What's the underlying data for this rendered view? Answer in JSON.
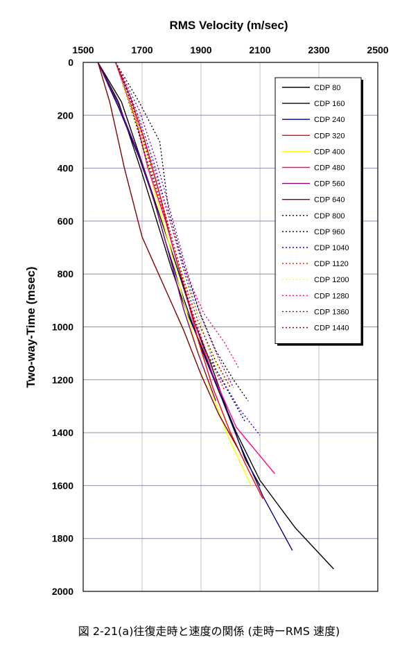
{
  "chart_data": {
    "type": "line",
    "title": "RMS Velocity (m/sec)",
    "xlabel": "RMS Velocity (m/sec)",
    "ylabel": "Two-way-Time (msec)",
    "xlim": [
      1500,
      2500
    ],
    "ylim": [
      0,
      2000
    ],
    "y_inverted": true,
    "x_axis_position": "top",
    "xticks": [
      1500,
      1700,
      1900,
      2100,
      2300,
      2500
    ],
    "yticks": [
      0,
      200,
      400,
      600,
      800,
      1000,
      1200,
      1400,
      1600,
      1800,
      2000
    ],
    "grid": true,
    "legend_position": "top-right",
    "series": [
      {
        "name": "CDP 80",
        "color": "#000000",
        "style": "solid",
        "points": [
          [
            1550,
            0
          ],
          [
            1620,
            150
          ],
          [
            1700,
            420
          ],
          [
            1750,
            600
          ],
          [
            1800,
            780
          ],
          [
            1850,
            940
          ],
          [
            1900,
            1070
          ],
          [
            1960,
            1240
          ],
          [
            2020,
            1400
          ],
          [
            2100,
            1580
          ],
          [
            2220,
            1760
          ],
          [
            2350,
            1915
          ]
        ]
      },
      {
        "name": "CDP 160",
        "color": "#000000",
        "style": "solid",
        "points": [
          [
            1550,
            0
          ],
          [
            1630,
            150
          ],
          [
            1700,
            380
          ],
          [
            1760,
            580
          ],
          [
            1820,
            780
          ],
          [
            1880,
            990
          ],
          [
            1930,
            1130
          ],
          [
            1990,
            1320
          ],
          [
            2050,
            1500
          ],
          [
            2100,
            1600
          ]
        ]
      },
      {
        "name": "CDP 240",
        "color": "#000080",
        "style": "solid",
        "points": [
          [
            1550,
            0
          ],
          [
            1620,
            170
          ],
          [
            1690,
            360
          ],
          [
            1740,
            520
          ],
          [
            1780,
            680
          ],
          [
            1840,
            890
          ],
          [
            1900,
            1080
          ],
          [
            1970,
            1270
          ],
          [
            2030,
            1440
          ],
          [
            2110,
            1640
          ],
          [
            2210,
            1845
          ]
        ]
      },
      {
        "name": "CDP 320",
        "color": "#ff0000",
        "style": "solid",
        "points": [
          [
            1610,
            0
          ],
          [
            1660,
            130
          ],
          [
            1710,
            300
          ],
          [
            1760,
            500
          ],
          [
            1800,
            680
          ],
          [
            1850,
            880
          ],
          [
            1890,
            1050
          ],
          [
            1940,
            1230
          ],
          [
            2000,
            1400
          ],
          [
            2060,
            1540
          ],
          [
            2110,
            1650
          ]
        ]
      },
      {
        "name": "CDP 400",
        "color": "#ffff00",
        "style": "solid",
        "points": [
          [
            1610,
            0
          ],
          [
            1650,
            130
          ],
          [
            1700,
            300
          ],
          [
            1740,
            480
          ],
          [
            1790,
            680
          ],
          [
            1840,
            900
          ],
          [
            1880,
            1060
          ],
          [
            1930,
            1230
          ],
          [
            1990,
            1410
          ],
          [
            2070,
            1600
          ]
        ]
      },
      {
        "name": "CDP 480",
        "color": "#ff0080",
        "style": "solid",
        "points": [
          [
            1610,
            0
          ],
          [
            1680,
            220
          ],
          [
            1720,
            400
          ],
          [
            1780,
            600
          ],
          [
            1830,
            800
          ],
          [
            1880,
            990
          ],
          [
            1940,
            1180
          ],
          [
            2020,
            1380
          ],
          [
            2150,
            1555
          ]
        ]
      },
      {
        "name": "CDP 560",
        "color": "#800080",
        "style": "solid",
        "points": [
          [
            1550,
            0
          ],
          [
            1620,
            160
          ],
          [
            1700,
            380
          ],
          [
            1750,
            560
          ],
          [
            1800,
            760
          ],
          [
            1840,
            930
          ],
          [
            1890,
            1100
          ],
          [
            1950,
            1280
          ]
        ]
      },
      {
        "name": "CDP 640",
        "color": "#800000",
        "style": "solid",
        "points": [
          [
            1550,
            0
          ],
          [
            1590,
            150
          ],
          [
            1640,
            400
          ],
          [
            1700,
            660
          ],
          [
            1780,
            860
          ],
          [
            1840,
            1010
          ],
          [
            1900,
            1180
          ],
          [
            1960,
            1330
          ],
          [
            2030,
            1470
          ]
        ]
      },
      {
        "name": "CDP 800",
        "color": "#000000",
        "style": "dotted",
        "points": [
          [
            1610,
            0
          ],
          [
            1670,
            200
          ],
          [
            1710,
            350
          ],
          [
            1760,
            520
          ],
          [
            1810,
            720
          ],
          [
            1860,
            920
          ],
          [
            1910,
            1080
          ],
          [
            1980,
            1220
          ],
          [
            2050,
            1360
          ]
        ]
      },
      {
        "name": "CDP 960",
        "color": "#000000",
        "style": "dotted",
        "points": [
          [
            1610,
            0
          ],
          [
            1690,
            150
          ],
          [
            1760,
            300
          ],
          [
            1790,
            560
          ],
          [
            1840,
            760
          ],
          [
            1890,
            930
          ],
          [
            1950,
            1090
          ],
          [
            2010,
            1200
          ],
          [
            2060,
            1280
          ]
        ]
      },
      {
        "name": "CDP 1040",
        "color": "#0000ff",
        "style": "dotted",
        "points": [
          [
            1610,
            0
          ],
          [
            1680,
            180
          ],
          [
            1740,
            380
          ],
          [
            1790,
            580
          ],
          [
            1840,
            780
          ],
          [
            1890,
            960
          ],
          [
            1950,
            1160
          ],
          [
            2030,
            1310
          ],
          [
            2100,
            1410
          ]
        ]
      },
      {
        "name": "CDP 1120",
        "color": "#ff0000",
        "style": "dotted",
        "points": [
          [
            1610,
            0
          ],
          [
            1670,
            180
          ],
          [
            1720,
            360
          ],
          [
            1770,
            560
          ],
          [
            1820,
            760
          ],
          [
            1870,
            940
          ],
          [
            1920,
            1100
          ],
          [
            1980,
            1240
          ]
        ]
      },
      {
        "name": "CDP 1200",
        "color": "#ffff00",
        "style": "dotted",
        "points": [
          [
            1610,
            0
          ],
          [
            1660,
            160
          ],
          [
            1720,
            340
          ],
          [
            1770,
            540
          ],
          [
            1820,
            740
          ],
          [
            1880,
            930
          ],
          [
            1930,
            1090
          ],
          [
            1990,
            1230
          ]
        ]
      },
      {
        "name": "CDP 1280",
        "color": "#ff0080",
        "style": "dotted",
        "points": [
          [
            1610,
            0
          ],
          [
            1680,
            200
          ],
          [
            1740,
            400
          ],
          [
            1800,
            620
          ],
          [
            1850,
            800
          ],
          [
            1910,
            950
          ],
          [
            1980,
            1060
          ],
          [
            2030,
            1160
          ]
        ]
      },
      {
        "name": "CDP 1360",
        "color": "#800080",
        "style": "dotted",
        "points": [
          [
            1610,
            0
          ],
          [
            1690,
            180
          ],
          [
            1750,
            380
          ],
          [
            1800,
            580
          ],
          [
            1850,
            780
          ],
          [
            1900,
            960
          ],
          [
            1960,
            1120
          ],
          [
            2010,
            1230
          ]
        ]
      },
      {
        "name": "CDP 1440",
        "color": "#800000",
        "style": "dotted",
        "points": [
          [
            1610,
            0
          ],
          [
            1680,
            200
          ],
          [
            1740,
            420
          ],
          [
            1790,
            620
          ],
          [
            1840,
            820
          ],
          [
            1890,
            980
          ],
          [
            1950,
            1130
          ],
          [
            2000,
            1230
          ]
        ]
      }
    ]
  },
  "caption": "図 2-21(a)往復走時と速度の関係 (走時ーRMS 速度)"
}
